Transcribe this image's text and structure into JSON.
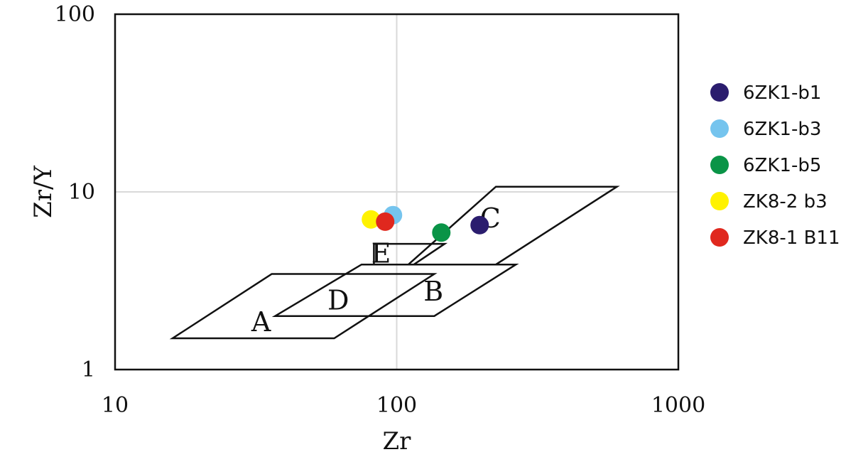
{
  "chart_data": {
    "type": "scatter",
    "title": "",
    "xlabel": "Zr",
    "ylabel": "Zr/Y",
    "x_scale": "log",
    "y_scale": "log",
    "xlim": [
      10,
      1000
    ],
    "ylim": [
      1,
      100
    ],
    "x_ticks": [
      "10",
      "100",
      "1000"
    ],
    "y_ticks": [
      "1",
      "10",
      "100"
    ],
    "grid": true,
    "legend_position": "right",
    "series": [
      {
        "name": "6ZK1-b1",
        "color": "#2b1d6e",
        "points": [
          [
            197,
            6.5
          ]
        ]
      },
      {
        "name": "6ZK1-b3",
        "color": "#75c4ee",
        "points": [
          [
            97,
            7.4
          ]
        ]
      },
      {
        "name": "6ZK1-b5",
        "color": "#0a9447",
        "points": [
          [
            144,
            5.9
          ]
        ]
      },
      {
        "name": "ZK8-2 b3",
        "color": "#fff200",
        "points": [
          [
            81,
            7.0
          ]
        ]
      },
      {
        "name": "ZK8-1 B11",
        "color": "#e0281e",
        "points": [
          [
            91,
            6.8
          ]
        ]
      }
    ],
    "regions": [
      {
        "label": "A",
        "polygon": [
          [
            16,
            1.5
          ],
          [
            36,
            3.45
          ],
          [
            136,
            3.45
          ],
          [
            60,
            1.5
          ]
        ],
        "label_at": [
          33,
          1.85
        ]
      },
      {
        "label": "B",
        "polygon": [
          [
            75,
            3.9
          ],
          [
            265,
            3.9
          ],
          [
            136,
            2.0
          ],
          [
            37,
            2.0
          ]
        ],
        "label_at": [
          135,
          2.75
        ]
      },
      {
        "label": "C",
        "polygon": [
          [
            110,
            3.9
          ],
          [
            225,
            10.7
          ],
          [
            605,
            10.7
          ],
          [
            225,
            3.9
          ]
        ],
        "label_at": [
          215,
          7.1
        ]
      },
      {
        "label": "D",
        "polygon": [],
        "label_at": [
          62,
          2.45
        ]
      },
      {
        "label": "E",
        "polygon": [
          [
            115,
            3.9
          ],
          [
            148,
            5.1
          ],
          [
            83,
            5.1
          ],
          [
            83,
            3.9
          ]
        ],
        "label_at": [
          88,
          4.5
        ]
      }
    ]
  }
}
